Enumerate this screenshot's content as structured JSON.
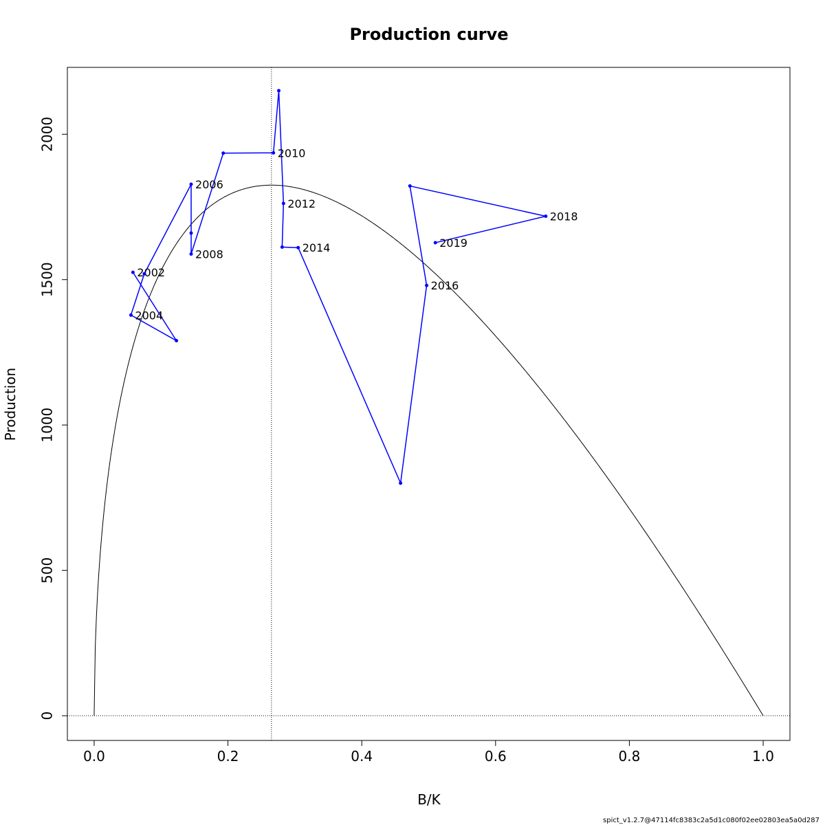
{
  "chart_data": {
    "type": "line",
    "title": "Production curve",
    "xlabel": "B/K",
    "ylabel": "Production",
    "xlim": [
      -0.04,
      1.04
    ],
    "ylim": [
      -85,
      2230
    ],
    "x_ticks": [
      0.0,
      0.2,
      0.4,
      0.6,
      0.8,
      1.0
    ],
    "x_tick_labels": [
      "0.0",
      "0.2",
      "0.4",
      "0.6",
      "0.8",
      "1.0"
    ],
    "y_ticks": [
      0,
      500,
      1000,
      1500,
      2000
    ],
    "y_tick_labels": [
      "0",
      "500",
      "1000",
      "1500",
      "2000"
    ],
    "grid": false,
    "reference_lines": {
      "vertical_x": 0.265,
      "horizontal_y": 0
    },
    "theoretical_curve": {
      "color": "#000000",
      "bmsy_k": 0.265,
      "msy": 1825
    },
    "series": [
      {
        "color": "#0000ff",
        "points": [
          {
            "x": 0.058,
            "y": 1525,
            "label": "2002"
          },
          {
            "x": 0.123,
            "y": 1290,
            "label": ""
          },
          {
            "x": 0.055,
            "y": 1378,
            "label": "2004"
          },
          {
            "x": 0.075,
            "y": 1520,
            "label": ""
          },
          {
            "x": 0.145,
            "y": 1828,
            "label": "2006"
          },
          {
            "x": 0.145,
            "y": 1660,
            "label": ""
          },
          {
            "x": 0.145,
            "y": 1588,
            "label": "2008"
          },
          {
            "x": 0.193,
            "y": 1935,
            "label": ""
          },
          {
            "x": 0.268,
            "y": 1936,
            "label": "2010"
          },
          {
            "x": 0.276,
            "y": 2150,
            "label": ""
          },
          {
            "x": 0.283,
            "y": 1762,
            "label": "2012"
          },
          {
            "x": 0.281,
            "y": 1612,
            "label": ""
          },
          {
            "x": 0.305,
            "y": 1610,
            "label": "2014"
          },
          {
            "x": 0.458,
            "y": 800,
            "label": ""
          },
          {
            "x": 0.497,
            "y": 1480,
            "label": "2016"
          },
          {
            "x": 0.472,
            "y": 1822,
            "label": ""
          },
          {
            "x": 0.675,
            "y": 1718,
            "label": "2018"
          },
          {
            "x": 0.51,
            "y": 1627,
            "label": "2019"
          }
        ]
      }
    ]
  },
  "footer": {
    "text": "spict_v1.2.7@47114fc8383c2a5d1c080f02ee02803ea5a0d287"
  }
}
